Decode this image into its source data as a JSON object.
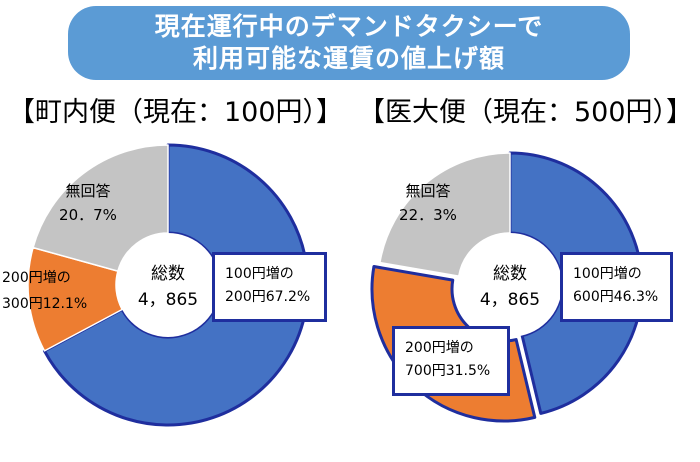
{
  "header": {
    "line1": "現在運行中のデマンドタクシーで",
    "line2": "利用可能な運賃の値上げ額"
  },
  "colors": {
    "banner": "#5b9bd5",
    "blue": "#4472c4",
    "orange": "#ed7d31",
    "gray": "#c4c4c4",
    "highlight_border": "#1f2e9e"
  },
  "chart_data": [
    {
      "type": "pie",
      "title": "【町内便（現在：100円）】",
      "center_label": "総数",
      "center_value": "4，865",
      "slices": [
        {
          "label_line1": "100円増の",
          "label_line2": "200円",
          "value": 67.2,
          "value_text": "67.2%"
        },
        {
          "label_line1": "200円増の",
          "label_line2": "300円",
          "value": 12.1,
          "value_text": "12.1%"
        },
        {
          "label_line1": "無回答",
          "label_line2": "",
          "value": 20.7,
          "value_text": "20．7%"
        }
      ]
    },
    {
      "type": "pie",
      "title": "【医大便（現在：500円）】",
      "center_label": "総数",
      "center_value": "4，865",
      "slices": [
        {
          "label_line1": "100円増の",
          "label_line2": "600円",
          "value": 46.3,
          "value_text": "46.3%"
        },
        {
          "label_line1": "200円増の",
          "label_line2": "700円",
          "value": 31.5,
          "value_text": "31.5%"
        },
        {
          "label_line1": "無回答",
          "label_line2": "",
          "value": 22.3,
          "value_text": "22．3%"
        }
      ]
    }
  ]
}
